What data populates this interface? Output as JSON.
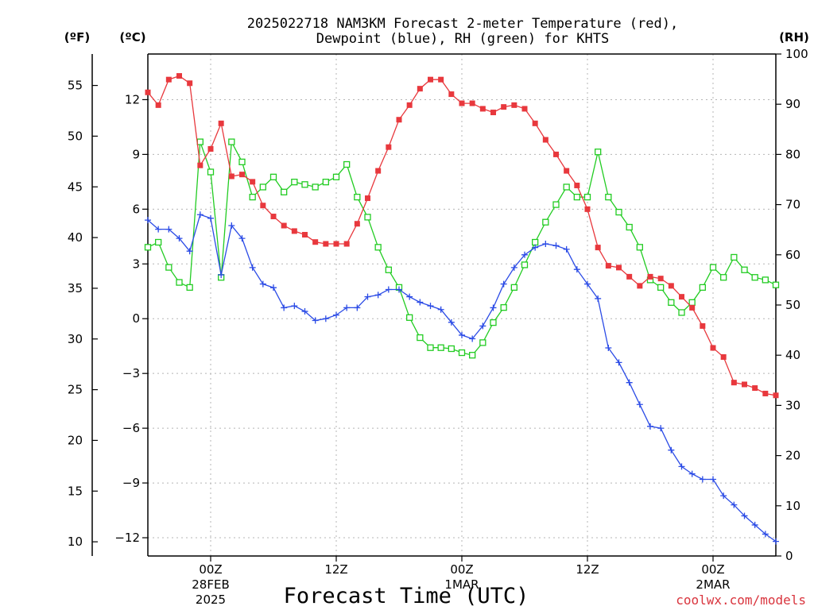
{
  "title_line1": "2025022718 NAM3KM Forecast 2-meter Temperature (red),",
  "title_line2": "Dewpoint (blue), RH (green) for KHTS",
  "units": {
    "fahrenheit": "(ºF)",
    "celsius": "(ºC)",
    "rh": "(RH)"
  },
  "credit": "coolwx.com/models",
  "chart_data": {
    "type": "line",
    "title": "2025022718 NAM3KM Forecast 2-meter Temperature (red), Dewpoint (blue), RH (green) for KHTS",
    "xlabel": "Forecast Time (UTC)",
    "x_unit": "forecast hour from 2025-02-27 18Z",
    "x": [
      0,
      1,
      2,
      3,
      4,
      5,
      6,
      7,
      8,
      9,
      10,
      11,
      12,
      13,
      14,
      15,
      16,
      17,
      18,
      19,
      20,
      21,
      22,
      23,
      24,
      25,
      26,
      27,
      28,
      29,
      30,
      31,
      32,
      33,
      34,
      35,
      36,
      37,
      38,
      39,
      40,
      41,
      42,
      43,
      44,
      45,
      46,
      47,
      48,
      49,
      50,
      51,
      52,
      53,
      54,
      55,
      56,
      57,
      58,
      59,
      60
    ],
    "xlim": [
      0,
      60
    ],
    "x_ticks": [
      {
        "x": 6,
        "label": "00Z",
        "sub1": "28FEB",
        "sub2": "2025"
      },
      {
        "x": 18,
        "label": "12Z",
        "sub1": "",
        "sub2": ""
      },
      {
        "x": 30,
        "label": "00Z",
        "sub1": "1MAR",
        "sub2": ""
      },
      {
        "x": 42,
        "label": "12Z",
        "sub1": "",
        "sub2": ""
      },
      {
        "x": 54,
        "label": "00Z",
        "sub1": "2MAR",
        "sub2": ""
      }
    ],
    "y_left_celsius": {
      "ylim": [
        -13,
        14.5
      ],
      "ticks": [
        12,
        9,
        6,
        3,
        0,
        -3,
        -6,
        -9,
        -12
      ],
      "tick_labels": [
        "12",
        "9",
        "6",
        "3",
        "0",
        "−3",
        "−6",
        "−9",
        "−12"
      ]
    },
    "y_left_fahrenheit": {
      "ticks": [
        55,
        50,
        45,
        40,
        35,
        30,
        25,
        20,
        15,
        10
      ]
    },
    "y_right_rh": {
      "ylim": [
        0,
        100
      ],
      "ticks": [
        0,
        10,
        20,
        30,
        40,
        50,
        60,
        70,
        80,
        90,
        100
      ]
    },
    "grid": true,
    "series": [
      {
        "name": "Temperature",
        "axis": "celsius",
        "color": "#e8383d",
        "marker": "filled-square",
        "values": [
          12.4,
          11.7,
          13.1,
          13.3,
          12.9,
          8.4,
          9.3,
          10.7,
          7.8,
          7.9,
          7.5,
          6.2,
          5.6,
          5.1,
          4.8,
          4.6,
          4.2,
          4.1,
          4.1,
          4.1,
          5.2,
          6.6,
          8.1,
          9.4,
          10.9,
          11.7,
          12.6,
          13.1,
          13.1,
          12.3,
          11.8,
          11.8,
          11.5,
          11.3,
          11.6,
          11.7,
          11.5,
          10.7,
          9.8,
          9.0,
          8.1,
          7.3,
          6.0,
          3.9,
          2.9,
          2.8,
          2.3,
          1.8,
          2.3,
          2.2,
          1.8,
          1.2,
          0.6,
          -0.4,
          -1.6,
          -2.1,
          -3.5,
          -3.6,
          -3.8,
          -4.1,
          -4.2
        ]
      },
      {
        "name": "Dewpoint",
        "axis": "celsius",
        "color": "#2b4be6",
        "marker": "plus",
        "values": [
          5.4,
          4.9,
          4.9,
          4.4,
          3.7,
          5.7,
          5.5,
          2.4,
          5.1,
          4.4,
          2.8,
          1.9,
          1.7,
          0.6,
          0.7,
          0.4,
          -0.1,
          0.0,
          0.2,
          0.6,
          0.6,
          1.2,
          1.3,
          1.6,
          1.6,
          1.2,
          0.9,
          0.7,
          0.5,
          -0.2,
          -0.9,
          -1.1,
          -0.4,
          0.6,
          1.9,
          2.8,
          3.5,
          3.9,
          4.1,
          4.0,
          3.8,
          2.7,
          1.9,
          1.1,
          -1.6,
          -2.4,
          -3.5,
          -4.7,
          -5.9,
          -6.0,
          -7.2,
          -8.1,
          -8.5,
          -8.8,
          -8.8,
          -9.7,
          -10.2,
          -10.8,
          -11.3,
          -11.8,
          -12.2
        ]
      },
      {
        "name": "RH",
        "axis": "rh",
        "color": "#22cc22",
        "marker": "open-square",
        "values": [
          61.5,
          62.5,
          57.5,
          54.5,
          53.5,
          82.5,
          76.5,
          55.5,
          82.5,
          78.5,
          71.5,
          73.5,
          75.5,
          72.5,
          74.5,
          74.0,
          73.5,
          74.5,
          75.5,
          78.0,
          71.5,
          67.5,
          61.5,
          57.0,
          53.5,
          47.5,
          43.5,
          41.5,
          41.5,
          41.3,
          40.5,
          40.0,
          42.5,
          46.5,
          49.5,
          53.5,
          58.0,
          62.5,
          66.5,
          70.0,
          73.5,
          71.5,
          71.5,
          80.5,
          71.5,
          68.5,
          65.5,
          61.5,
          55.0,
          53.5,
          50.5,
          48.5,
          50.5,
          53.5,
          57.5,
          55.5,
          59.5,
          57.0,
          55.5,
          55.0,
          54.0
        ]
      }
    ]
  }
}
